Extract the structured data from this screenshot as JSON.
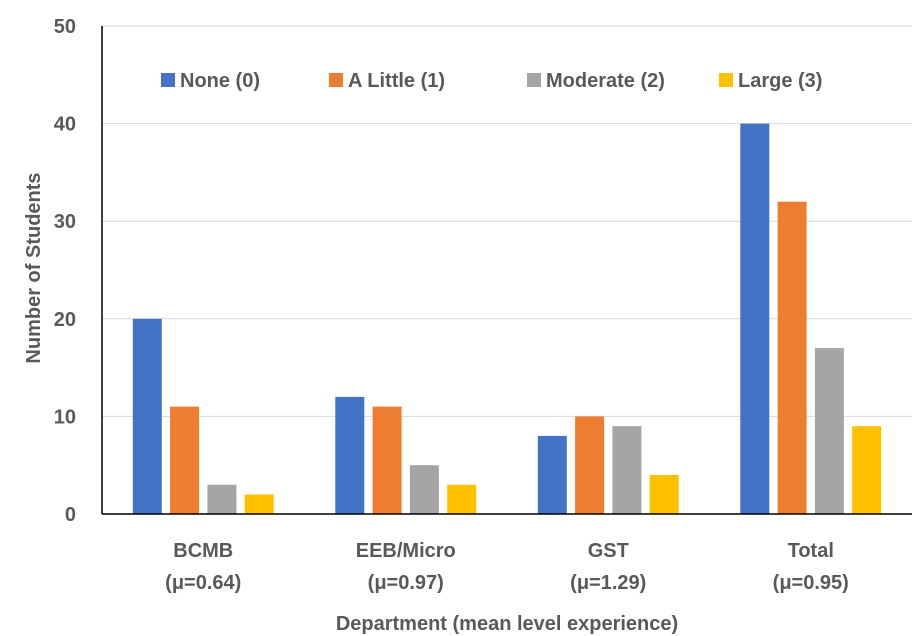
{
  "chart_data": {
    "type": "bar",
    "title": "",
    "xlabel": "Department (mean level experience)",
    "ylabel": "Number of Students",
    "ylim": [
      0,
      50
    ],
    "yticks": [
      0,
      10,
      20,
      30,
      40,
      50
    ],
    "grid": true,
    "legend_position": "top",
    "categories": [
      {
        "name": "BCMB",
        "mean": "(μ=0.64)"
      },
      {
        "name": "EEB/Micro",
        "mean": "(μ=0.97)"
      },
      {
        "name": "GST",
        "mean": "(μ=1.29)"
      },
      {
        "name": "Total",
        "mean": "(μ=0.95)"
      }
    ],
    "series": [
      {
        "name": "None (0)",
        "color": "#4472C4",
        "values": [
          20,
          12,
          8,
          40
        ]
      },
      {
        "name": "A Little (1)",
        "color": "#ED7D31",
        "values": [
          11,
          11,
          10,
          32
        ]
      },
      {
        "name": "Moderate (2)",
        "color": "#A5A5A5",
        "values": [
          3,
          5,
          9,
          17
        ]
      },
      {
        "name": "Large (3)",
        "color": "#FFC000",
        "values": [
          2,
          3,
          4,
          9
        ]
      }
    ]
  }
}
